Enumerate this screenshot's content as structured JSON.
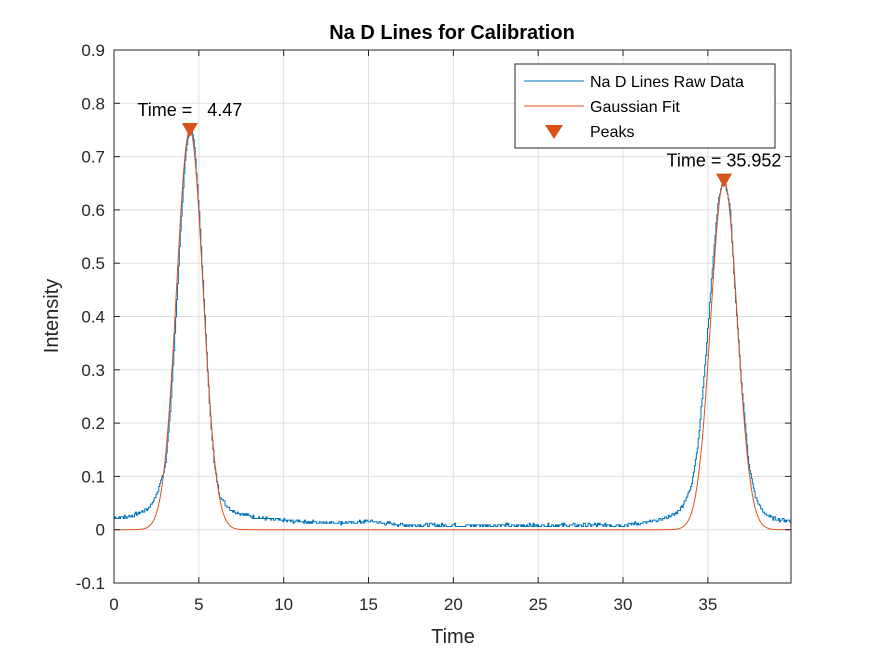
{
  "chart_data": {
    "type": "line",
    "title": "Na D Lines for Calibration",
    "xlabel": "Time",
    "ylabel": "Intensity",
    "xlim": [
      0,
      39.9
    ],
    "ylim": [
      -0.1,
      0.9
    ],
    "xticks": [
      0,
      5,
      10,
      15,
      20,
      25,
      30,
      35
    ],
    "yticks": [
      -0.1,
      0,
      0.1,
      0.2,
      0.3,
      0.4,
      0.5,
      0.6,
      0.7,
      0.8,
      0.9
    ],
    "ytick_labels": [
      "-0.1",
      "0",
      "0.1",
      "0.2",
      "0.3",
      "0.4",
      "0.5",
      "0.6",
      "0.7",
      "0.8",
      "0.9"
    ],
    "grid": true,
    "legend_position": "top-right",
    "series": [
      {
        "name": "Na D Lines Raw Data",
        "color": "#0072BD",
        "style": "step",
        "x": [
          0,
          1,
          2,
          2.5,
          3,
          3.3,
          3.6,
          3.9,
          4.2,
          4.47,
          4.7,
          5.0,
          5.3,
          5.6,
          5.9,
          6.2,
          6.6,
          7.0,
          7.5,
          8,
          9,
          10,
          12,
          14,
          15,
          16,
          17,
          20,
          25,
          30,
          31,
          32,
          33,
          33.5,
          34,
          34.4,
          34.8,
          35.2,
          35.6,
          35.952,
          36.3,
          36.6,
          37.0,
          37.4,
          37.8,
          38.2,
          38.6,
          39,
          39.5,
          39.9
        ],
        "values": [
          0.022,
          0.025,
          0.04,
          0.065,
          0.12,
          0.22,
          0.38,
          0.56,
          0.7,
          0.765,
          0.73,
          0.6,
          0.42,
          0.24,
          0.12,
          0.065,
          0.045,
          0.035,
          0.03,
          0.025,
          0.02,
          0.017,
          0.014,
          0.013,
          0.016,
          0.012,
          0.009,
          0.008,
          0.008,
          0.009,
          0.012,
          0.017,
          0.028,
          0.045,
          0.08,
          0.16,
          0.3,
          0.47,
          0.62,
          0.66,
          0.6,
          0.44,
          0.26,
          0.12,
          0.06,
          0.035,
          0.025,
          0.02,
          0.018,
          0.016
        ]
      },
      {
        "name": "Gaussian Fit",
        "color": "#D95319",
        "style": "line",
        "gaussians": [
          {
            "amplitude": 0.75,
            "center": 4.47,
            "sigma": 0.78
          },
          {
            "amplitude": 0.655,
            "center": 35.952,
            "sigma": 0.78
          }
        ]
      },
      {
        "name": "Peaks",
        "color": "#D95319",
        "style": "marker-triangle-down",
        "x": [
          4.47,
          35.952
        ],
        "values": [
          0.75,
          0.655
        ]
      }
    ],
    "annotations": [
      {
        "text": "Time =   4.47",
        "x": 4.47,
        "y": 0.75
      },
      {
        "text": "Time = 35.952",
        "x": 35.952,
        "y": 0.655
      }
    ]
  }
}
